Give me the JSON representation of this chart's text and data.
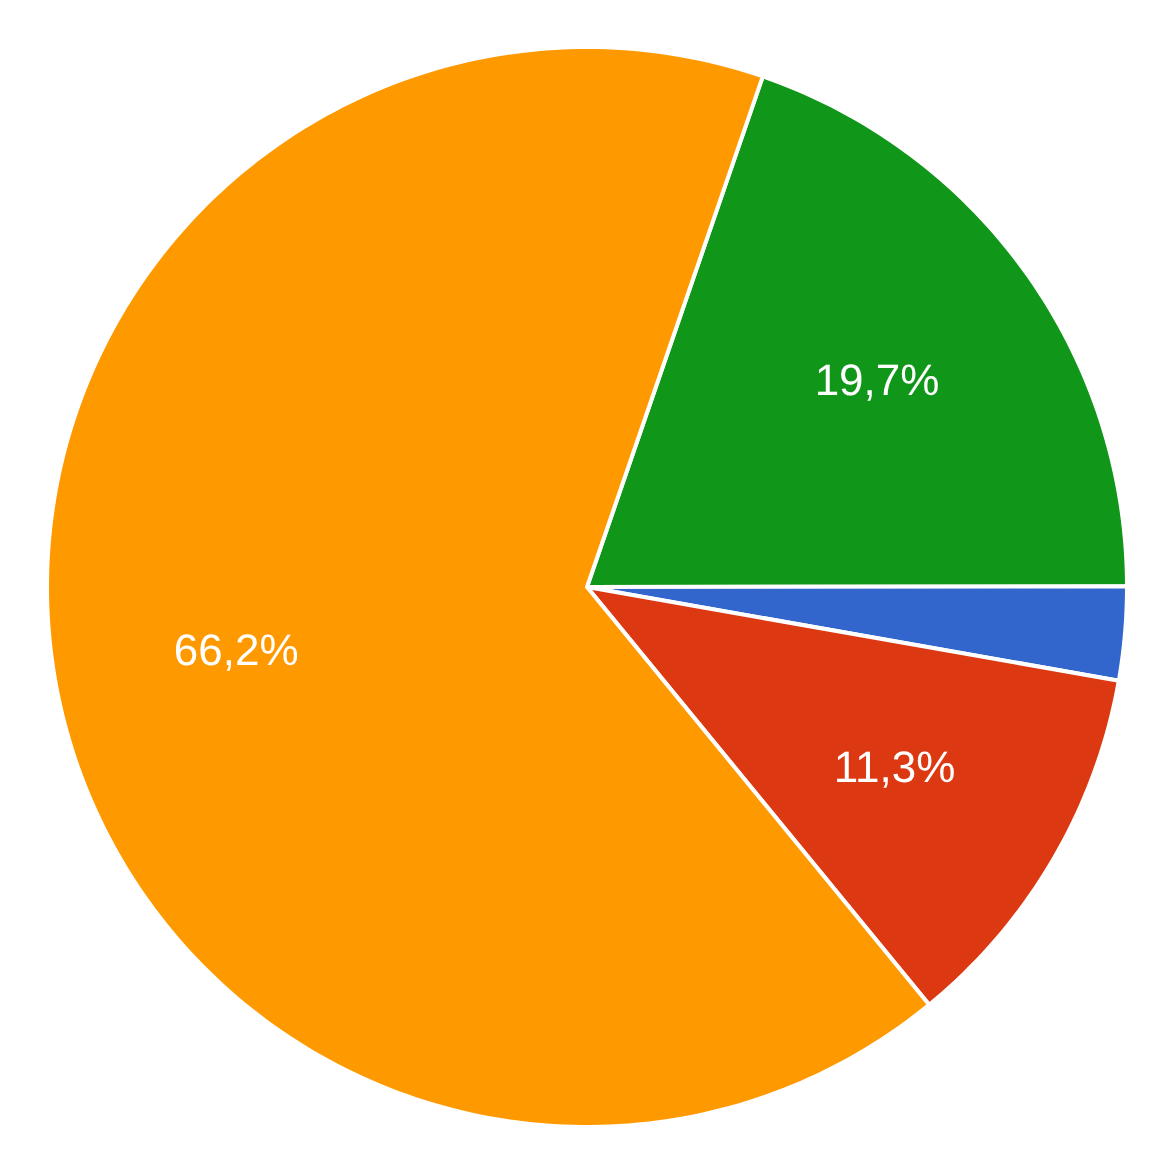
{
  "chart_data": {
    "type": "pie",
    "categories": [
      null,
      null,
      null,
      null
    ],
    "values": [
      19.7,
      2.8,
      11.3,
      66.2
    ],
    "colors": [
      "#109618",
      "#3366cc",
      "#dc3912",
      "#ff9900"
    ],
    "value_labels": [
      "19,7%",
      null,
      "11,3%",
      "66,2%"
    ]
  }
}
